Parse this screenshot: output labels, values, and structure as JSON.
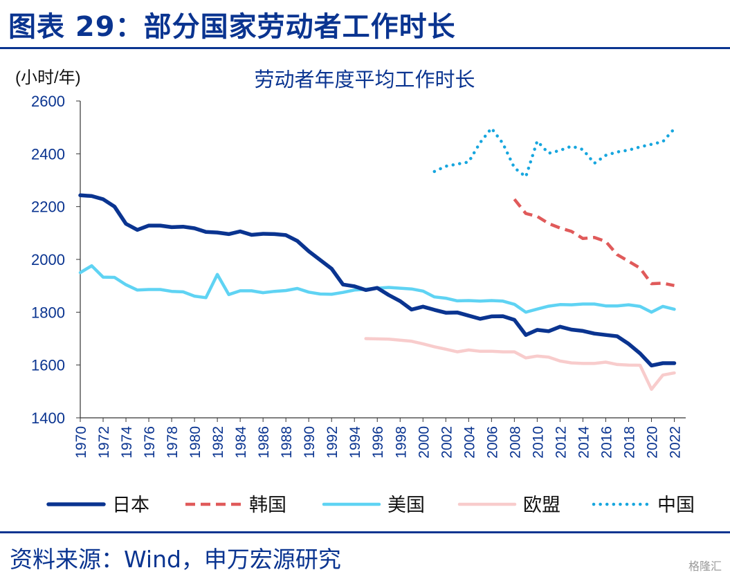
{
  "header": {
    "title": "图表 29：部分国家劳动者工作时长"
  },
  "footer": {
    "source": "资料来源：Wind，申万宏源研究",
    "watermark": "格隆汇"
  },
  "colors": {
    "brand": "#0a3490",
    "japan": "#0a3490",
    "korea": "#e05a5a",
    "usa": "#5fd3f3",
    "eu": "#f8cccc",
    "china": "#17a6de"
  },
  "chart_data": {
    "type": "line",
    "title": "劳动者年度平均工作时长",
    "ylabel": "(小时/年)",
    "xlabel": "",
    "ylim": [
      1400,
      2600
    ],
    "xlim": [
      1970,
      2023
    ],
    "yticks": [
      1400,
      1600,
      1800,
      2000,
      2200,
      2400,
      2600
    ],
    "xticks": [
      "1970",
      "1972",
      "1974",
      "1976",
      "1978",
      "1980",
      "1982",
      "1984",
      "1986",
      "1988",
      "1990",
      "1992",
      "1994",
      "1996",
      "1998",
      "2000",
      "2002",
      "2004",
      "2006",
      "2008",
      "2010",
      "2012",
      "2014",
      "2016",
      "2018",
      "2020",
      "2022"
    ],
    "grid": false,
    "legend_position": "bottom",
    "series": [
      {
        "name": "日本",
        "style": "solid",
        "x": [
          1970,
          1971,
          1972,
          1973,
          1974,
          1975,
          1976,
          1977,
          1978,
          1979,
          1980,
          1981,
          1982,
          1983,
          1984,
          1985,
          1986,
          1987,
          1988,
          1989,
          1990,
          1991,
          1992,
          1993,
          1994,
          1995,
          1996,
          1997,
          1998,
          1999,
          2000,
          2001,
          2002,
          2003,
          2004,
          2005,
          2006,
          2007,
          2008,
          2009,
          2010,
          2011,
          2012,
          2013,
          2014,
          2015,
          2016,
          2017,
          2018,
          2019,
          2020,
          2021,
          2022
        ],
        "values": [
          2243,
          2240,
          2228,
          2200,
          2135,
          2112,
          2128,
          2128,
          2122,
          2124,
          2118,
          2104,
          2102,
          2096,
          2106,
          2093,
          2097,
          2096,
          2092,
          2070,
          2031,
          1998,
          1965,
          1905,
          1898,
          1884,
          1892,
          1865,
          1842,
          1810,
          1821,
          1809,
          1798,
          1799,
          1787,
          1775,
          1784,
          1785,
          1771,
          1714,
          1733,
          1728,
          1745,
          1734,
          1729,
          1719,
          1714,
          1709,
          1680,
          1644,
          1598,
          1607,
          1607
        ]
      },
      {
        "name": "韩国",
        "style": "dashed",
        "x": [
          2008,
          2009,
          2010,
          2011,
          2012,
          2013,
          2014,
          2015,
          2016,
          2017,
          2018,
          2019,
          2020,
          2021,
          2022
        ],
        "values": [
          2228,
          2174,
          2163,
          2136,
          2119,
          2106,
          2079,
          2083,
          2068,
          2018,
          1993,
          1967,
          1908,
          1910,
          1901
        ]
      },
      {
        "name": "美国",
        "style": "solid",
        "x": [
          1970,
          1971,
          1972,
          1973,
          1974,
          1975,
          1976,
          1977,
          1978,
          1979,
          1980,
          1981,
          1982,
          1983,
          1984,
          1985,
          1986,
          1987,
          1988,
          1989,
          1990,
          1991,
          1992,
          1993,
          1994,
          1995,
          1996,
          1997,
          1998,
          1999,
          2000,
          2001,
          2002,
          2003,
          2004,
          2005,
          2006,
          2007,
          2008,
          2009,
          2010,
          2011,
          2012,
          2013,
          2014,
          2015,
          2016,
          2017,
          2018,
          2019,
          2020,
          2021,
          2022
        ],
        "values": [
          1950,
          1976,
          1933,
          1932,
          1904,
          1884,
          1886,
          1886,
          1879,
          1877,
          1861,
          1855,
          1943,
          1867,
          1881,
          1881,
          1874,
          1879,
          1882,
          1890,
          1876,
          1869,
          1868,
          1875,
          1884,
          1887,
          1891,
          1894,
          1891,
          1888,
          1880,
          1858,
          1853,
          1843,
          1844,
          1842,
          1844,
          1842,
          1830,
          1800,
          1812,
          1823,
          1829,
          1828,
          1831,
          1831,
          1824,
          1824,
          1828,
          1822,
          1800,
          1822,
          1811
        ]
      },
      {
        "name": "欧盟",
        "style": "solid",
        "x": [
          1995,
          1996,
          1997,
          1998,
          1999,
          2000,
          2001,
          2002,
          2003,
          2004,
          2005,
          2006,
          2007,
          2008,
          2009,
          2010,
          2011,
          2012,
          2013,
          2014,
          2015,
          2016,
          2017,
          2018,
          2019,
          2020,
          2021,
          2022
        ],
        "values": [
          1700,
          1699,
          1698,
          1694,
          1690,
          1680,
          1669,
          1660,
          1650,
          1657,
          1652,
          1652,
          1650,
          1650,
          1627,
          1634,
          1630,
          1615,
          1608,
          1606,
          1606,
          1611,
          1602,
          1600,
          1599,
          1508,
          1562,
          1570
        ]
      },
      {
        "name": "中国",
        "style": "dotted",
        "x": [
          2001,
          2002,
          2003,
          2004,
          2005,
          2006,
          2007,
          2008,
          2009,
          2010,
          2011,
          2012,
          2013,
          2014,
          2015,
          2016,
          2017,
          2018,
          2019,
          2020,
          2021,
          2022
        ],
        "values": [
          2333,
          2353,
          2361,
          2369,
          2442,
          2497,
          2439,
          2347,
          2313,
          2448,
          2402,
          2413,
          2429,
          2416,
          2364,
          2394,
          2407,
          2414,
          2426,
          2436,
          2446,
          2495
        ]
      }
    ]
  }
}
